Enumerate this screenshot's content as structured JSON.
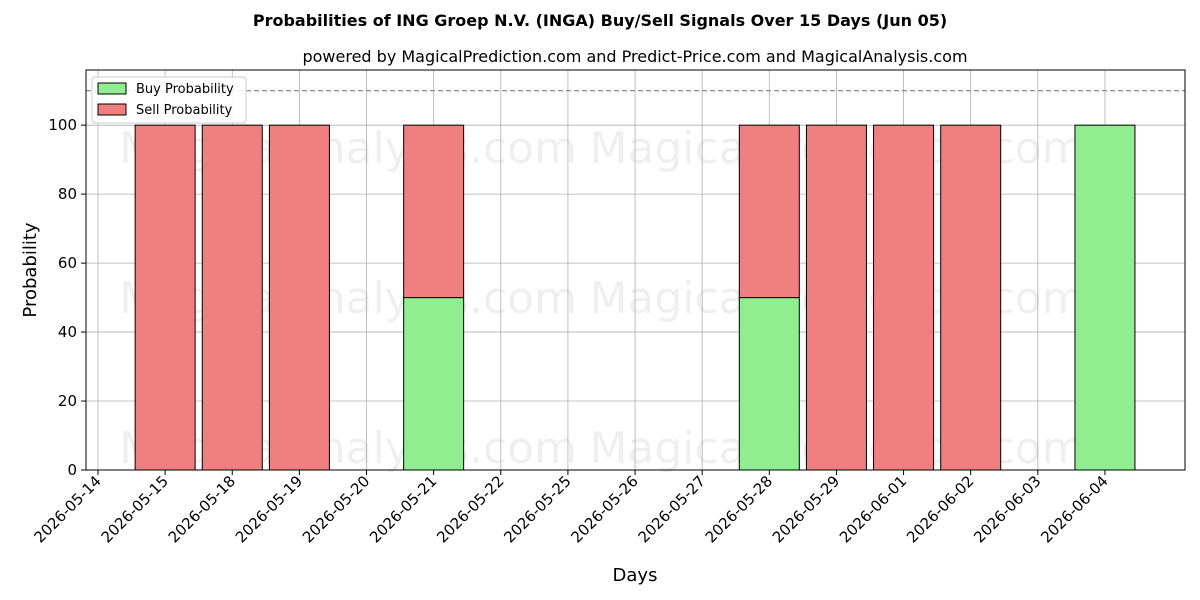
{
  "chart_data": {
    "type": "bar",
    "stacked": true,
    "title": "Probabilities of ING Groep N.V. (INGA) Buy/Sell Signals Over 15 Days (Jun 05)",
    "subtitle": "powered by MagicalPrediction.com and Predict-Price.com and MagicalAnalysis.com",
    "xlabel": "Days",
    "ylabel": "Probability",
    "ylim": [
      0,
      116
    ],
    "yticks": [
      0,
      20,
      40,
      60,
      80,
      100
    ],
    "reference_line": 110,
    "grid": true,
    "legend_position": "top-left",
    "categories": [
      "2026-05-14",
      "2026-05-15",
      "2026-05-18",
      "2026-05-19",
      "2026-05-20",
      "2026-05-21",
      "2026-05-22",
      "2026-05-25",
      "2026-05-26",
      "2026-05-27",
      "2026-05-28",
      "2026-05-29",
      "2026-06-01",
      "2026-06-02",
      "2026-06-03",
      "2026-06-04"
    ],
    "series": [
      {
        "name": "Buy Probability",
        "color": "#90ee90",
        "values": [
          0,
          0,
          0,
          0,
          0,
          50,
          0,
          0,
          0,
          0,
          50,
          0,
          0,
          0,
          0,
          100
        ]
      },
      {
        "name": "Sell Probability",
        "color": "#f08080",
        "values": [
          0,
          100,
          100,
          100,
          0,
          50,
          0,
          0,
          0,
          0,
          50,
          100,
          100,
          100,
          0,
          0
        ]
      }
    ]
  },
  "watermarks": [
    "MagicalAnalysis.com",
    "MagicalPrediction.com"
  ]
}
